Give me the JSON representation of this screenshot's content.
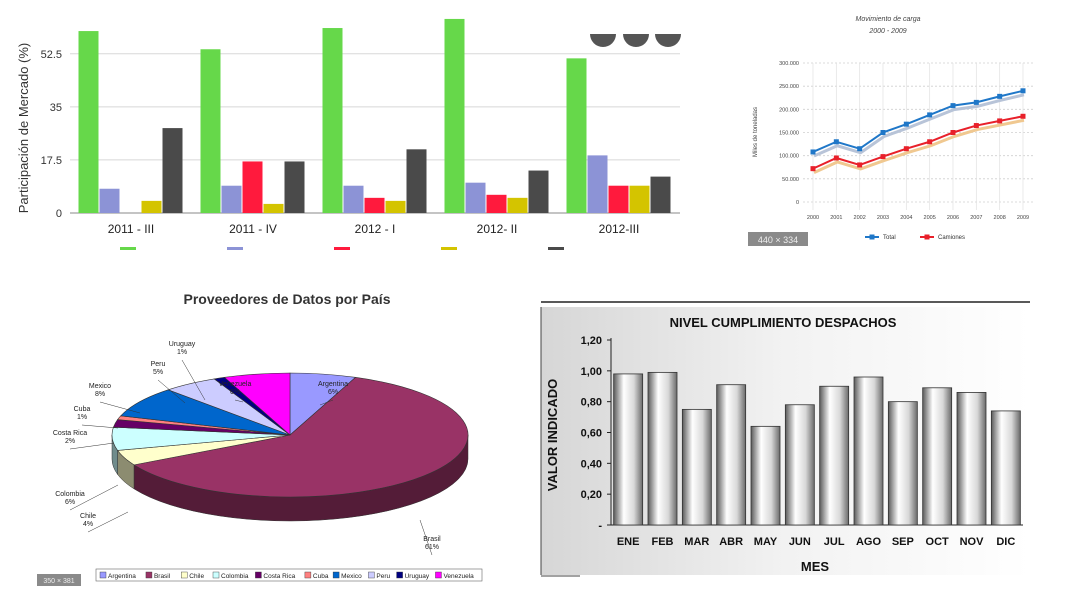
{
  "chart_data": [
    {
      "type": "bar",
      "ylabel": "Participación de Mercado (%)",
      "yticks": [
        "0",
        "17.5",
        "35",
        "52.5"
      ],
      "ylim": [
        0,
        62
      ],
      "categories": [
        "2011 - III",
        "2011 - IV",
        "2012 - I",
        "2012- II",
        "2012-III"
      ],
      "series": [
        {
          "color": "#66d84a",
          "values": [
            60,
            54,
            61,
            64,
            51
          ]
        },
        {
          "color": "#8c93d6",
          "values": [
            8,
            9,
            9,
            10,
            19
          ]
        },
        {
          "color": "#ff1a3d",
          "values": [
            0,
            17,
            5,
            6,
            9
          ]
        },
        {
          "color": "#d4c400",
          "values": [
            4,
            3,
            4,
            5,
            9
          ]
        },
        {
          "color": "#4a4a4a",
          "values": [
            28,
            17,
            21,
            14,
            12
          ]
        }
      ],
      "legend": "bottom",
      "grid": true
    },
    {
      "type": "line",
      "title": "Movimiento de carga",
      "subtitle": "2000 - 2009",
      "ylabel": "Miles de toneladas",
      "x": [
        "2000",
        "2001",
        "2002",
        "2003",
        "2004",
        "2005",
        "2006",
        "2007",
        "2008",
        "2009"
      ],
      "yticks": [
        "0",
        "50.000",
        "100.000",
        "150.000",
        "200.000",
        "250.000",
        "300.000"
      ],
      "ylim": [
        0,
        300000
      ],
      "series": [
        {
          "name": "Total",
          "color": "#1f77c8",
          "values": [
            108000,
            130000,
            115000,
            150000,
            168000,
            188000,
            208000,
            215000,
            228000,
            240000
          ]
        },
        {
          "name": "Camiones",
          "color": "#e8202a",
          "values": [
            72000,
            95000,
            80000,
            98000,
            115000,
            130000,
            150000,
            165000,
            175000,
            185000
          ]
        }
      ],
      "size_badge": "440 × 334",
      "legend": "bottom",
      "grid": true
    },
    {
      "type": "pie",
      "title": "Proveedores de Datos por País",
      "slices": [
        {
          "name": "Argentina",
          "label": "Argentina\n6%",
          "value": 6,
          "color": "#9999ff"
        },
        {
          "name": "Brasil",
          "label": "Brasil\n61%",
          "value": 61,
          "color": "#993366"
        },
        {
          "name": "Chile",
          "label": "Chile\n4%",
          "value": 4,
          "color": "#ffffcc"
        },
        {
          "name": "Colombia",
          "label": "Colombia\n6%",
          "value": 6,
          "color": "#ccffff"
        },
        {
          "name": "Costa Rica",
          "label": "Costa Rica\n2%",
          "value": 2,
          "color": "#660066"
        },
        {
          "name": "Cuba",
          "label": "Cuba\n1%",
          "value": 1,
          "color": "#ff8080"
        },
        {
          "name": "Mexico",
          "label": "Mexico\n8%",
          "value": 8,
          "color": "#0066cc"
        },
        {
          "name": "Peru",
          "label": "Peru\n5%",
          "value": 5,
          "color": "#ccccff"
        },
        {
          "name": "Uruguay",
          "label": "Uruguay\n1%",
          "value": 1,
          "color": "#000080"
        },
        {
          "name": "Venezuela",
          "label": "Venezuela\n6%",
          "value": 6,
          "color": "#ff00ff"
        }
      ],
      "legend_labels": [
        "Argentina",
        "Brasil",
        "Chile",
        "Colombia",
        "Costa Rica",
        "Cuba",
        "Mexico",
        "Peru",
        "Uruguay",
        "Venezuela"
      ],
      "size_badge": "350 × 381",
      "legend": "bottom"
    },
    {
      "type": "bar",
      "title": "NIVEL  CUMPLIMIENTO DESPACHOS",
      "xlabel": "MES",
      "ylabel": "VALOR INDICADO",
      "categories": [
        "ENE",
        "FEB",
        "MAR",
        "ABR",
        "MAY",
        "JUN",
        "JUL",
        "AGO",
        "SEP",
        "OCT",
        "NOV",
        "DIC"
      ],
      "values": [
        0.98,
        0.99,
        0.75,
        0.91,
        0.64,
        0.78,
        0.9,
        0.96,
        0.8,
        0.89,
        0.86,
        0.74
      ],
      "yticks": [
        "-",
        "0,20",
        "0,40",
        "0,60",
        "0,80",
        "1,00",
        "1,20"
      ],
      "ylim": [
        0,
        1.2
      ],
      "grid": false
    }
  ]
}
